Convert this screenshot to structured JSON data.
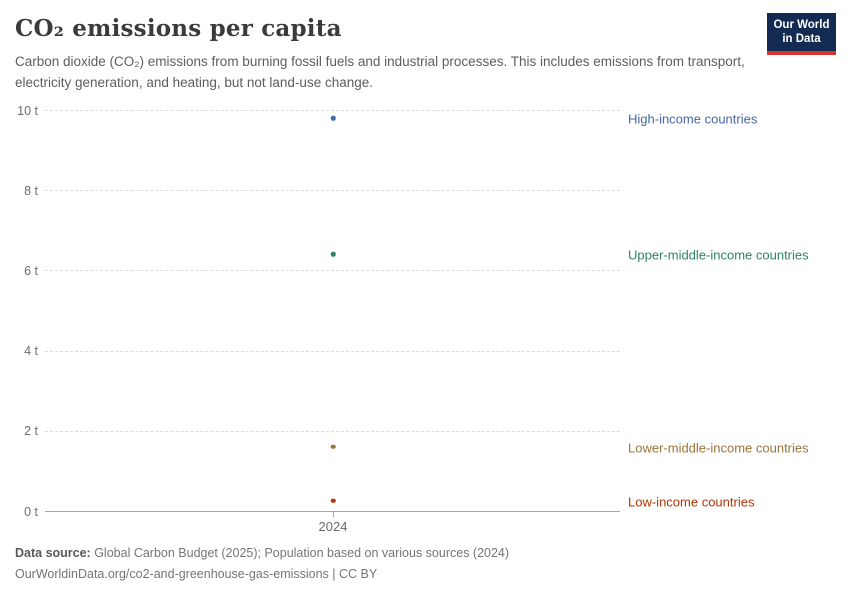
{
  "header": {
    "title": "CO₂ emissions per capita",
    "subtitle": "Carbon dioxide (CO₂) emissions from burning fossil fuels and industrial processes. This includes emissions from transport, electricity generation, and heating, but not land-use change.",
    "logo_line1": "Our World",
    "logo_line2": "in Data",
    "logo_bg": "#132b52",
    "logo_accent": "#d6332d"
  },
  "chart_data": {
    "type": "scatter",
    "x": [
      2024
    ],
    "x_ticks": [
      "2024"
    ],
    "y_ticks": [
      {
        "value": 0,
        "label": "0 t"
      },
      {
        "value": 2,
        "label": "2 t"
      },
      {
        "value": 4,
        "label": "4 t"
      },
      {
        "value": 6,
        "label": "6 t"
      },
      {
        "value": 8,
        "label": "8 t"
      },
      {
        "value": 10,
        "label": "10 t"
      }
    ],
    "ylim": [
      0,
      10
    ],
    "grid": "horizontal-dashed",
    "legend_position": "right-of-points",
    "unit": "tonnes per person",
    "series": [
      {
        "name": "High-income countries",
        "year": 2024,
        "value": 9.8,
        "color": "#4668a5"
      },
      {
        "name": "Upper-middle-income countries",
        "year": 2024,
        "value": 6.4,
        "color": "#2c8465"
      },
      {
        "name": "Lower-middle-income countries",
        "year": 2024,
        "value": 1.6,
        "color": "#9e7438"
      },
      {
        "name": "Low-income countries",
        "year": 2024,
        "value": 0.25,
        "color": "#b13507"
      }
    ]
  },
  "footer": {
    "source_label": "Data source:",
    "source_text": " Global Carbon Budget (2025); Population based on various sources (2024)",
    "note": "OurWorldinData.org/co2-and-greenhouse-gas-emissions | CC BY"
  }
}
